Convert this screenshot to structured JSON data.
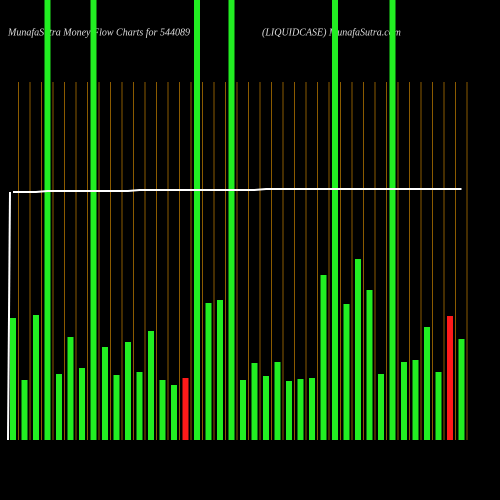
{
  "chart_data": {
    "type": "bar",
    "title": "MunafaSutra  Money Flow  Charts for 544089",
    "subtitle": "(LIQUIDCASE) MunafaSutra.com",
    "categories": [
      null,
      null,
      null,
      null,
      null,
      null,
      null,
      null,
      null,
      null,
      null,
      null,
      null,
      null,
      null,
      null,
      null,
      null,
      null,
      null,
      null,
      null,
      null,
      null,
      null,
      null,
      null,
      null,
      null,
      null,
      null,
      null,
      null,
      null,
      null,
      null,
      null,
      null,
      null,
      null
    ],
    "values": [
      122,
      60,
      125,
      440,
      66,
      103,
      72,
      440,
      93,
      65,
      98,
      68,
      109,
      60,
      55,
      62,
      440,
      137,
      140,
      440,
      60,
      77,
      64,
      78,
      59,
      61,
      62,
      165,
      440,
      136,
      181,
      150,
      66,
      440,
      78,
      80,
      113,
      68,
      124,
      101
    ],
    "colors": [
      "#22ee22",
      "#22ee22",
      "#22ee22",
      "#22ee22",
      "#22ee22",
      "#22ee22",
      "#22ee22",
      "#22ee22",
      "#22ee22",
      "#22ee22",
      "#22ee22",
      "#22ee22",
      "#22ee22",
      "#22ee22",
      "#22ee22",
      "#ff1a1a",
      "#22ee22",
      "#22ee22",
      "#22ee22",
      "#22ee22",
      "#22ee22",
      "#22ee22",
      "#22ee22",
      "#22ee22",
      "#22ee22",
      "#22ee22",
      "#22ee22",
      "#22ee22",
      "#22ee22",
      "#22ee22",
      "#22ee22",
      "#22ee22",
      "#22ee22",
      "#22ee22",
      "#22ee22",
      "#22ee22",
      "#22ee22",
      "#22ee22",
      "#ff1a1a",
      "#22ee22"
    ],
    "line_values": [
      248,
      248,
      248,
      249,
      249,
      249,
      249,
      249,
      249,
      249,
      249,
      250,
      250,
      250,
      250,
      250,
      250,
      250,
      250,
      250,
      250,
      250,
      251,
      251,
      251,
      251,
      251,
      251,
      251,
      251,
      251,
      251,
      251,
      251,
      251,
      251,
      251,
      251,
      251,
      251
    ],
    "line_color": "#ffffff",
    "grid_color": "#8a5a00",
    "ylim": [
      0,
      440
    ]
  }
}
